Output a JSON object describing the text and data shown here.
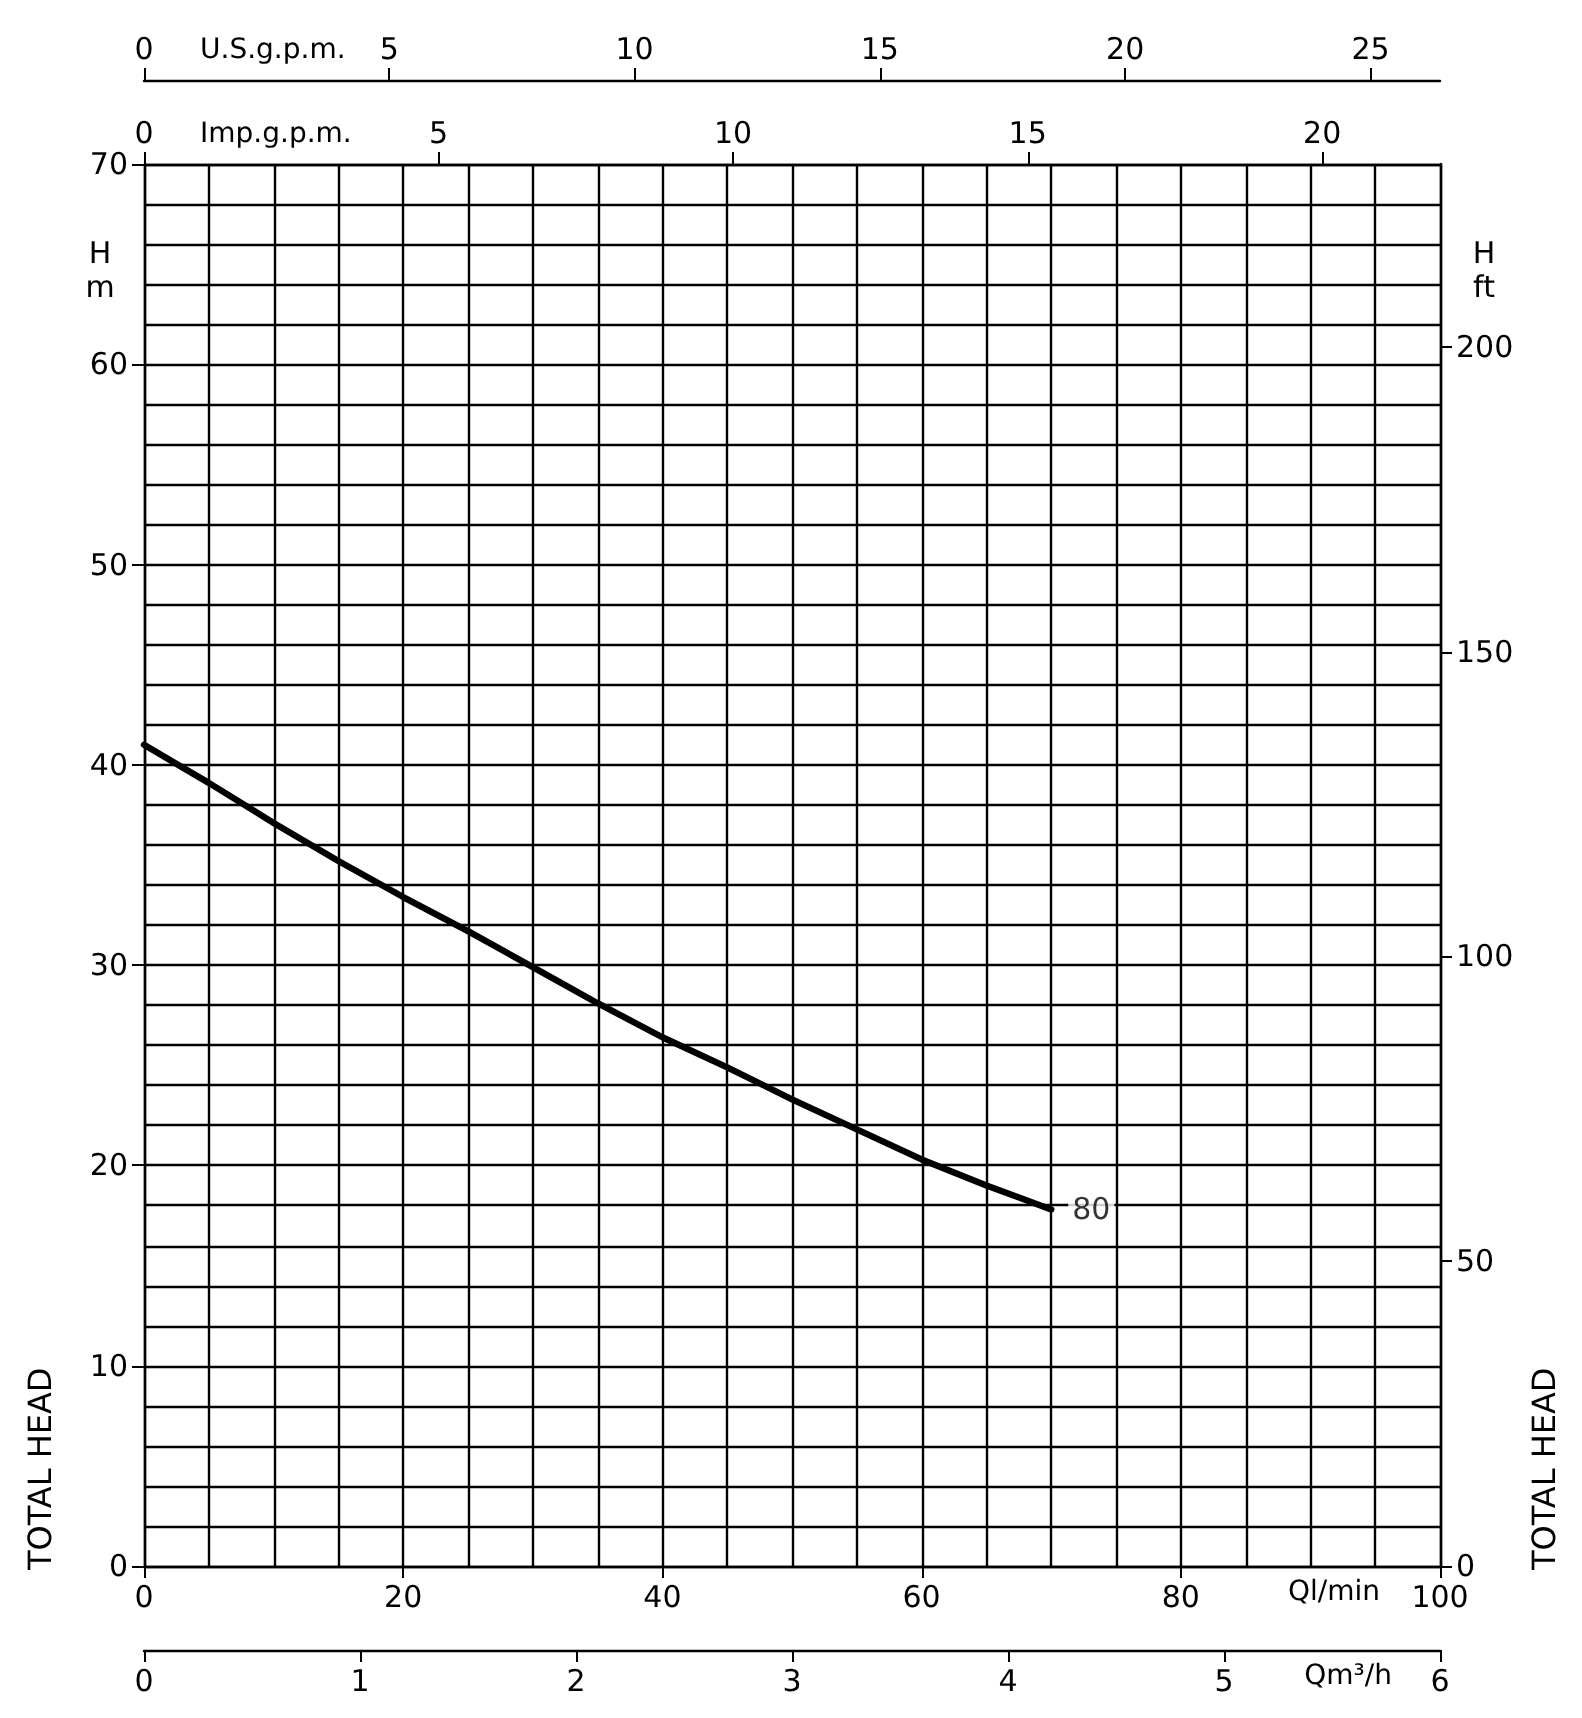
{
  "chart_data": {
    "type": "line",
    "x": [
      0,
      5,
      10,
      15,
      20,
      25,
      30,
      35,
      40,
      45,
      50,
      55,
      60,
      65,
      70
    ],
    "series": [
      {
        "color": "#000000",
        "values": [
          41,
          39.1,
          37.1,
          35.2,
          33.4,
          31.7,
          29.9,
          28.1,
          26.4,
          24.9,
          23.3,
          21.8,
          20.3,
          19,
          17.8
        ]
      }
    ],
    "xlabel": "Ql/min",
    "xlim": [
      0,
      100
    ],
    "xticks": [
      0,
      20,
      40,
      60,
      80,
      100
    ],
    "x2label": "Imp.g.p.m.",
    "x2lim": [
      0,
      22
    ],
    "x2ticks": [
      0,
      5,
      10,
      15,
      20
    ],
    "ylabel": "TOTAL HEAD",
    "ylim": [
      0,
      70
    ],
    "yticks": [
      0,
      10,
      20,
      30,
      40,
      50,
      60,
      70
    ],
    "y2label": "TOTAL HEAD",
    "y2lim": [
      0,
      230
    ],
    "y2ticks": [
      0,
      50,
      100,
      150,
      200
    ],
    "annotations": [
      {
        "text": "80",
        "x": 70,
        "y": 17.8
      },
      "H\nm",
      "H\nft",
      "U.S.g.p.m.",
      "0",
      "5",
      "10",
      "15",
      "20",
      "25",
      "Qm³/h",
      "0",
      "1",
      "2",
      "3",
      "4",
      "5",
      "6"
    ],
    "grid": true,
    "marker": "none",
    "line_style": "solid"
  }
}
